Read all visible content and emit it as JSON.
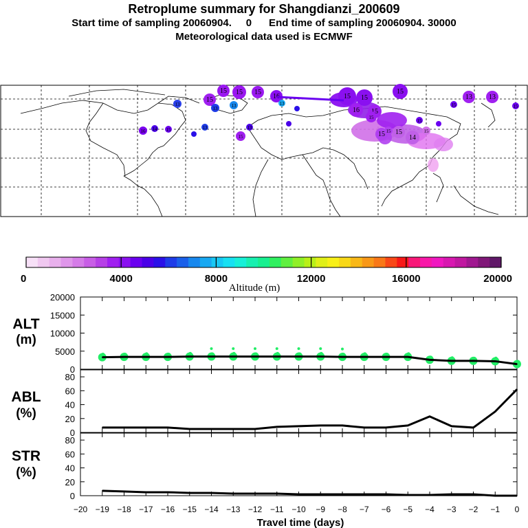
{
  "header": {
    "title": "Retroplume summary for Shangdianzi_200609",
    "subtitle": "Start time of sampling 20060904.     0      End time of sampling 20060904. 30000",
    "met_line": "Meteorological data used is ECMWF"
  },
  "map": {
    "labels": [
      "15",
      "15",
      "15",
      "16",
      "15",
      "13",
      "13",
      "13",
      "13",
      "15",
      "13",
      "16",
      "16",
      "14",
      "15",
      "15",
      "15",
      "15",
      "15",
      "13",
      "13",
      "15",
      "15",
      "16",
      "16",
      "15",
      "15",
      "15",
      "14",
      "15",
      "15",
      "15",
      "15",
      "15",
      "13"
    ]
  },
  "colorbar": {
    "title": "Altitude (m)",
    "ticks": [
      "0",
      "4000",
      "8000",
      "12000",
      "16000",
      "20000"
    ],
    "colors": [
      "#f7e0f7",
      "#f0c8f0",
      "#e8b0ec",
      "#df96ea",
      "#d57ce8",
      "#c85ee6",
      "#b640e6",
      "#a020f0",
      "#8a10f0",
      "#6a00f0",
      "#4a00e8",
      "#2a10e8",
      "#1e3ce8",
      "#1a60ea",
      "#1888ee",
      "#18a8f2",
      "#18c8f4",
      "#18e0f2",
      "#18f0d8",
      "#18f0b0",
      "#18f090",
      "#30f060",
      "#60f040",
      "#90f028",
      "#b8f018",
      "#e0f018",
      "#f8f018",
      "#f8d818",
      "#f8b818",
      "#f89818",
      "#f87818",
      "#f84818",
      "#f81818",
      "#f81878",
      "#f818a8",
      "#f018c0",
      "#d818b0",
      "#c018a0",
      "#a01890",
      "#801878",
      "#601868"
    ]
  },
  "colors": {
    "plume": "#a020f0",
    "points": "#22ee66",
    "line": "#000000"
  },
  "chart_data": [
    {
      "type": "line",
      "panel": "ALT",
      "ylabel": "ALT\n(m)",
      "ylabel_lines": [
        "ALT",
        "(m)"
      ],
      "ylim": [
        0,
        20000
      ],
      "yticks": [
        0,
        5000,
        10000,
        15000,
        20000
      ],
      "ytick_labels": [
        "0",
        "5000",
        "10000",
        "15000",
        "20000"
      ],
      "x": [
        -19,
        -18,
        -17,
        -16,
        -15,
        -14,
        -13,
        -12,
        -11,
        -10,
        -9,
        -8,
        -7,
        -6,
        -5,
        -4,
        -3,
        -2,
        -1,
        0
      ],
      "values": [
        3300,
        3400,
        3400,
        3400,
        3500,
        3500,
        3500,
        3500,
        3500,
        3500,
        3500,
        3400,
        3400,
        3400,
        3400,
        2600,
        2300,
        2300,
        2200,
        1400
      ]
    },
    {
      "type": "line",
      "panel": "ABL",
      "ylabel_lines": [
        "ABL",
        "(%)"
      ],
      "ylim": [
        0,
        90
      ],
      "yticks": [
        0,
        20,
        40,
        60,
        80
      ],
      "ytick_labels": [
        "0",
        "20",
        "40",
        "60",
        "80"
      ],
      "x": [
        -19,
        -18,
        -17,
        -16,
        -15,
        -14,
        -13,
        -12,
        -11,
        -10,
        -9,
        -8,
        -7,
        -6,
        -5,
        -4,
        -3,
        -2,
        -1,
        0
      ],
      "values": [
        7,
        7,
        7,
        7,
        5,
        5,
        5,
        5,
        8,
        9,
        10,
        10,
        7,
        7,
        10,
        23,
        9,
        7,
        30,
        62
      ]
    },
    {
      "type": "line",
      "panel": "STR",
      "ylabel_lines": [
        "STR",
        "(%)"
      ],
      "ylim": [
        0,
        90
      ],
      "yticks": [
        0,
        20,
        40,
        60,
        80
      ],
      "ytick_labels": [
        "0",
        "20",
        "40",
        "60",
        "80"
      ],
      "x": [
        -19,
        -18,
        -17,
        -16,
        -15,
        -14,
        -13,
        -12,
        -11,
        -10,
        -9,
        -8,
        -7,
        -6,
        -5,
        -4,
        -3,
        -2,
        -1,
        0
      ],
      "values": [
        7,
        6,
        5,
        5,
        4,
        4,
        3,
        3,
        3,
        2,
        2,
        2,
        2,
        2,
        1,
        1,
        2,
        2,
        0,
        0
      ]
    }
  ],
  "xaxis": {
    "label": "Travel time (days)",
    "ticks": [
      -20,
      -19,
      -18,
      -17,
      -16,
      -15,
      -14,
      -13,
      -12,
      -11,
      -10,
      -9,
      -8,
      -7,
      -6,
      -5,
      -4,
      -3,
      -2,
      -1,
      0
    ],
    "tick_labels": [
      "−20",
      "−19",
      "−18",
      "−17",
      "−16",
      "−15",
      "−14",
      "−13",
      "−12",
      "−11",
      "−10",
      "−9",
      "−8",
      "−7",
      "−6",
      "−5",
      "−4",
      "−3",
      "−2",
      "−1",
      "0"
    ]
  }
}
